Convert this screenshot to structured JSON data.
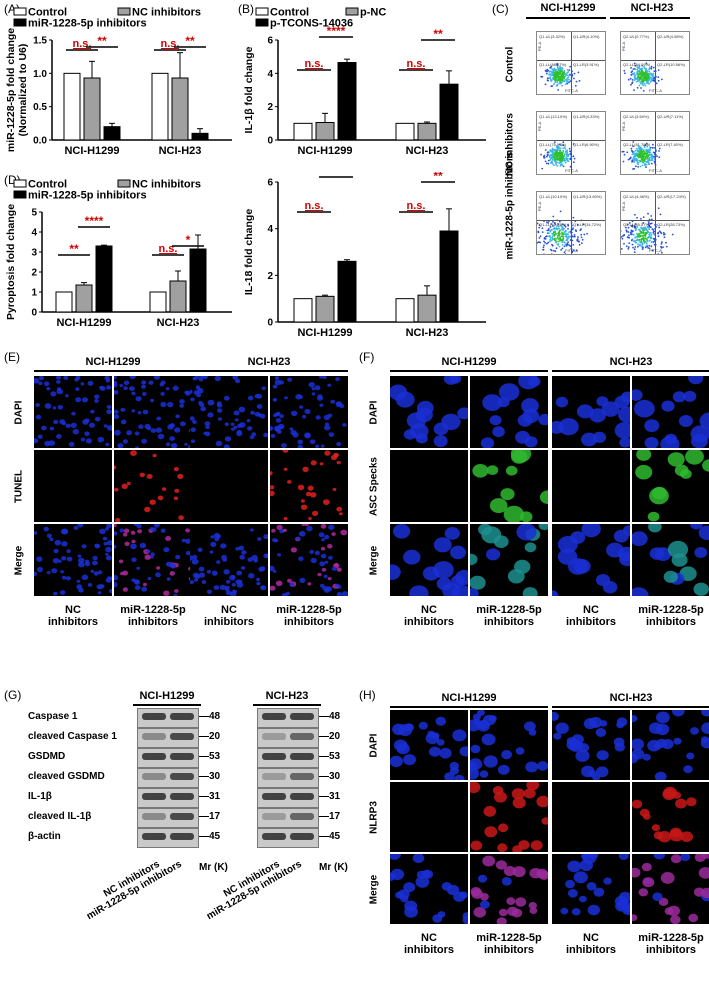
{
  "panels": {
    "A": "(A)",
    "B": "(B)",
    "C": "(C)",
    "D": "(D)",
    "E": "(E)",
    "F": "(F)",
    "G": "(G)",
    "H": "(H)"
  },
  "chart_data": [
    {
      "id": "A",
      "type": "bar",
      "categories": [
        "NCI-H1299",
        "NCI-H23"
      ],
      "ylabel": "miR-1228-5p fold change\n(Normalized to U6)",
      "ylim": [
        0,
        1.5
      ],
      "yticks": [
        "0.0",
        "0.5",
        "1.0",
        "1.5"
      ],
      "series": [
        {
          "name": "Control",
          "values": [
            1.0,
            1.0
          ],
          "err": [
            0,
            0
          ]
        },
        {
          "name": "NC inhibitors",
          "values": [
            0.93,
            0.93
          ],
          "err": [
            0.25,
            0.38
          ]
        },
        {
          "name": "miR-1228-5p inhibitors",
          "values": [
            0.2,
            0.1
          ],
          "err": [
            0.05,
            0.07
          ]
        }
      ],
      "sig": [
        [
          "n.s.",
          "**"
        ],
        [
          "n.s.",
          "**"
        ]
      ]
    },
    {
      "id": "B1",
      "type": "bar",
      "categories": [
        "NCI-H1299",
        "NCI-H23"
      ],
      "ylabel": "IL-1β fold change",
      "ylim": [
        0,
        6
      ],
      "yticks": [
        "0",
        "2",
        "4",
        "6"
      ],
      "series": [
        {
          "name": "Control",
          "values": [
            1.0,
            1.0
          ],
          "err": [
            0,
            0
          ]
        },
        {
          "name": "p-NC",
          "values": [
            1.05,
            1.0
          ],
          "err": [
            0.55,
            0.08
          ]
        },
        {
          "name": "p-TCONS-14036",
          "values": [
            4.65,
            3.35
          ],
          "err": [
            0.2,
            0.8
          ]
        }
      ],
      "sig": [
        [
          "n.s.",
          "****"
        ],
        [
          "n.s.",
          "**"
        ]
      ]
    },
    {
      "id": "B2",
      "type": "bar",
      "categories": [
        "NCI-H1299",
        "NCI-H23"
      ],
      "ylabel": "IL-18 fold change",
      "ylim": [
        0,
        6
      ],
      "yticks": [
        "0",
        "2",
        "4",
        "6"
      ],
      "series": [
        {
          "name": "Control",
          "values": [
            1.0,
            1.0
          ],
          "err": [
            0,
            0
          ]
        },
        {
          "name": "p-NC",
          "values": [
            1.1,
            1.15
          ],
          "err": [
            0.05,
            0.4
          ]
        },
        {
          "name": "p-TCONS-14036",
          "values": [
            2.6,
            3.9
          ],
          "err": [
            0.07,
            0.95
          ]
        }
      ],
      "sig": [
        [
          "n.s.",
          "****"
        ],
        [
          "n.s.",
          "**"
        ]
      ]
    },
    {
      "id": "D",
      "type": "bar",
      "categories": [
        "NCI-H1299",
        "NCI-H23"
      ],
      "ylabel": "Pyroptosis fold change",
      "ylim": [
        0,
        5
      ],
      "yticks": [
        "0",
        "1",
        "2",
        "3",
        "4",
        "5"
      ],
      "series": [
        {
          "name": "Control",
          "values": [
            1.0,
            1.0
          ],
          "err": [
            0,
            0
          ]
        },
        {
          "name": "NC inhibitors",
          "values": [
            1.35,
            1.55
          ],
          "err": [
            0.12,
            0.5
          ]
        },
        {
          "name": "miR-1228-5p inhibitors",
          "values": [
            3.3,
            3.15
          ],
          "err": [
            0.04,
            0.7
          ]
        }
      ],
      "sig": [
        [
          "**",
          "****"
        ],
        [
          "n.s.",
          "*"
        ]
      ]
    }
  ],
  "panelC": {
    "cols": [
      "NCI-H1299",
      "NCI-H23"
    ],
    "rows": [
      "Control",
      "NC inhibitors",
      "miR-1228-5p\ninhibitors"
    ],
    "xaxis": "FITC-A",
    "yaxis": "PE-A",
    "quads": [
      [
        [
          "Q1-UL(3.32%)",
          "Q1-UR(4.10%)",
          "Q1-LL(88.67%)",
          "Q1-LR(3.91%)"
        ],
        [
          "Q2-UL(0.77%)",
          "Q2-UR(4.58%)",
          "Q2-LL(84.09%)",
          "Q2-LR(10.56%)"
        ]
      ],
      [
        [
          "Q1-UL(13.10%)",
          "Q1-UR(4.33%)",
          "Q1-LL(75.57%)",
          "Q1-LR(6.90%)"
        ],
        [
          "Q2-UL(3.69%)",
          "Q2-UR(7.11%)",
          "Q2-LL(81.79%)",
          "Q2-LR(7.40%)"
        ]
      ],
      [
        [
          "Q1-UL(10.10%)",
          "Q1-UR(13.80%)",
          "Q1-LL(41.35%)",
          "Q1-LR(34.72%)"
        ],
        [
          "Q2-UL(4.48%)",
          "Q2-UR(17.24%)",
          "Q2-LL(45.57%)",
          "Q2-LR(28.73%)"
        ]
      ]
    ]
  },
  "panelE": {
    "cols": [
      "NCI-H1299",
      "NCI-H23"
    ],
    "rows": [
      "DAPI",
      "TUNEL",
      "Merge"
    ],
    "conds": [
      "NC\ninhibitors",
      "miR-1228-5p\ninhibitors"
    ]
  },
  "panelF": {
    "cols": [
      "NCI-H1299",
      "NCI-H23"
    ],
    "rows": [
      "DAPI",
      "ASC Specks",
      "Merge"
    ],
    "conds": [
      "NC\ninhibitors",
      "miR-1228-5p\ninhibitors"
    ]
  },
  "panelG": {
    "cols": [
      "NCI-H1299",
      "NCI-H23"
    ],
    "proteins": [
      "Caspase 1",
      "cleaved Caspase 1",
      "GSDMD",
      "cleaved GSDMD",
      " IL-1β",
      "cleaved IL-1β",
      "β-actin"
    ],
    "mw": [
      "48",
      "20",
      "53",
      "30",
      "31",
      "17",
      "45"
    ],
    "lanes": [
      "NC inhibitors",
      "miR-1228-5p inhibitors"
    ],
    "mr": "Mr (K)"
  },
  "panelH": {
    "cols": [
      "NCI-H1299",
      "NCI-H23"
    ],
    "rows": [
      "DAPI",
      "NLRP3",
      "Merge"
    ],
    "conds": [
      "NC\ninhibitors",
      "miR-1228-5p\ninhibitors"
    ]
  },
  "colors": {
    "control": "#ffffff",
    "nc": "#a0a0a0",
    "treat": "#000000",
    "sig": "#d40000",
    "dapi": "#1a2fd6",
    "tunel": "#e02020",
    "asc": "#2fb82f",
    "nlrp3": "#c81818"
  }
}
